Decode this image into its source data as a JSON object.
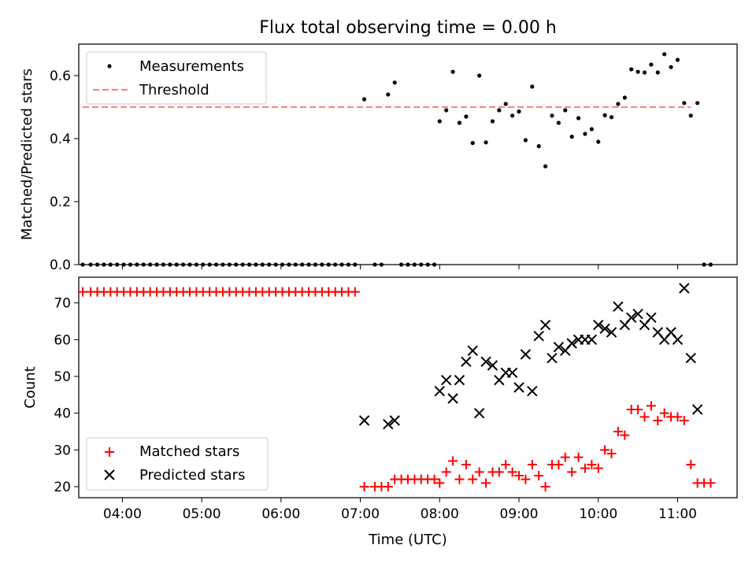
{
  "chart_data": [
    {
      "type": "scatter",
      "title": "Flux total observing time = 0.00 h",
      "xlabel": "",
      "ylabel": "Matched/Predicted stars",
      "xlim": [
        "03:27",
        "11:45"
      ],
      "ylim": [
        0,
        0.7
      ],
      "yticks": [
        0.0,
        0.2,
        0.4,
        0.6
      ],
      "ytick_labels": [
        "0.0",
        "0.2",
        "0.4",
        "0.6"
      ],
      "legend": {
        "position": "top-left",
        "entries": [
          "Measurements",
          "Threshold"
        ]
      },
      "series": [
        {
          "name": "Measurements",
          "marker": "dot",
          "color": "#000000",
          "x": [
            "03:30",
            "03:36",
            "03:41",
            "03:46",
            "03:51",
            "03:56",
            "04:01",
            "04:06",
            "04:11",
            "04:16",
            "04:21",
            "04:26",
            "04:31",
            "04:36",
            "04:41",
            "04:46",
            "04:51",
            "04:56",
            "05:01",
            "05:06",
            "05:11",
            "05:16",
            "05:21",
            "05:26",
            "05:31",
            "05:36",
            "05:41",
            "05:46",
            "05:51",
            "05:56",
            "06:01",
            "06:06",
            "06:11",
            "06:16",
            "06:21",
            "06:26",
            "06:31",
            "06:36",
            "06:41",
            "06:46",
            "06:51",
            "06:56",
            "07:03",
            "07:11",
            "07:16",
            "07:21",
            "07:26",
            "07:31",
            "07:36",
            "07:41",
            "07:46",
            "07:51",
            "07:56",
            "08:00",
            "08:05",
            "08:10",
            "08:15",
            "08:20",
            "08:25",
            "08:30",
            "08:35",
            "08:40",
            "08:45",
            "08:50",
            "08:55",
            "09:00",
            "09:05",
            "09:10",
            "09:15",
            "09:20",
            "09:25",
            "09:30",
            "09:35",
            "09:40",
            "09:45",
            "09:50",
            "09:55",
            "10:00",
            "10:05",
            "10:10",
            "10:15",
            "10:20",
            "10:25",
            "10:30",
            "10:35",
            "10:40",
            "10:45",
            "10:50",
            "10:55",
            "11:00",
            "11:05",
            "11:10",
            "11:15",
            "11:20",
            "11:25"
          ],
          "y": [
            0,
            0,
            0,
            0,
            0,
            0,
            0,
            0,
            0,
            0,
            0,
            0,
            0,
            0,
            0,
            0,
            0,
            0,
            0,
            0,
            0,
            0,
            0,
            0,
            0,
            0,
            0,
            0,
            0,
            0,
            0,
            0,
            0,
            0,
            0,
            0,
            0,
            0,
            0,
            0,
            0,
            0,
            0.525,
            0,
            0,
            0.54,
            0.578,
            0,
            0,
            0,
            0,
            0,
            0,
            0.455,
            0.49,
            0.612,
            0.45,
            0.47,
            0.386,
            0.6,
            0.388,
            0.455,
            0.49,
            0.51,
            0.473,
            0.486,
            0.395,
            0.565,
            0.376,
            0.312,
            0.473,
            0.45,
            0.49,
            0.406,
            0.465,
            0.415,
            0.43,
            0.39,
            0.474,
            0.468,
            0.51,
            0.53,
            0.62,
            0.612,
            0.61,
            0.635,
            0.61,
            0.668,
            0.627,
            0.65,
            0.513,
            0.473,
            0.513,
            0,
            0
          ]
        },
        {
          "name": "Threshold",
          "marker": "dashed-line",
          "color": "#ff7f7f",
          "x": [
            "03:30",
            "11:10"
          ],
          "y": [
            0.5,
            0.5
          ]
        }
      ]
    },
    {
      "type": "scatter",
      "title": "",
      "xlabel": "Time (UTC)",
      "ylabel": "Count",
      "xlim": [
        "03:27",
        "11:45"
      ],
      "ylim": [
        17,
        77
      ],
      "xticks": [
        "04:00",
        "05:00",
        "06:00",
        "07:00",
        "08:00",
        "09:00",
        "10:00",
        "11:00"
      ],
      "yticks": [
        20,
        30,
        40,
        50,
        60,
        70
      ],
      "ytick_labels": [
        "20",
        "30",
        "40",
        "50",
        "60",
        "70"
      ],
      "legend": {
        "position": "bottom-left",
        "entries": [
          "Matched stars",
          "Predicted stars"
        ]
      },
      "series": [
        {
          "name": "Matched stars",
          "marker": "plus",
          "color": "#ff0000",
          "x": [
            "03:30",
            "03:36",
            "03:41",
            "03:46",
            "03:51",
            "03:56",
            "04:01",
            "04:06",
            "04:11",
            "04:16",
            "04:21",
            "04:26",
            "04:31",
            "04:36",
            "04:41",
            "04:46",
            "04:51",
            "04:56",
            "05:01",
            "05:06",
            "05:11",
            "05:16",
            "05:21",
            "05:26",
            "05:31",
            "05:36",
            "05:41",
            "05:46",
            "05:51",
            "05:56",
            "06:01",
            "06:06",
            "06:11",
            "06:16",
            "06:21",
            "06:26",
            "06:31",
            "06:36",
            "06:41",
            "06:46",
            "06:51",
            "06:56",
            "07:03",
            "07:11",
            "07:16",
            "07:21",
            "07:26",
            "07:31",
            "07:36",
            "07:41",
            "07:46",
            "07:51",
            "07:56",
            "08:00",
            "08:05",
            "08:10",
            "08:15",
            "08:20",
            "08:25",
            "08:30",
            "08:35",
            "08:40",
            "08:45",
            "08:50",
            "08:55",
            "09:00",
            "09:05",
            "09:10",
            "09:15",
            "09:20",
            "09:25",
            "09:30",
            "09:35",
            "09:40",
            "09:45",
            "09:50",
            "09:55",
            "10:00",
            "10:05",
            "10:10",
            "10:15",
            "10:20",
            "10:25",
            "10:30",
            "10:35",
            "10:40",
            "10:45",
            "10:50",
            "10:55",
            "11:00",
            "11:05",
            "11:10",
            "11:15",
            "11:20",
            "11:25"
          ],
          "y": [
            73,
            73,
            73,
            73,
            73,
            73,
            73,
            73,
            73,
            73,
            73,
            73,
            73,
            73,
            73,
            73,
            73,
            73,
            73,
            73,
            73,
            73,
            73,
            73,
            73,
            73,
            73,
            73,
            73,
            73,
            73,
            73,
            73,
            73,
            73,
            73,
            73,
            73,
            73,
            73,
            73,
            73,
            20,
            20,
            20,
            20,
            22,
            22,
            22,
            22,
            22,
            22,
            22,
            21,
            24,
            27,
            22,
            26,
            22,
            24,
            21,
            24,
            24,
            26,
            24,
            23,
            22,
            26,
            23,
            20,
            26,
            26,
            28,
            24,
            28,
            25,
            26,
            25,
            30,
            29,
            35,
            34,
            41,
            41,
            39,
            42,
            38,
            40,
            39,
            39,
            38,
            26,
            21,
            21,
            21
          ]
        },
        {
          "name": "Predicted stars",
          "marker": "x",
          "color": "#000000",
          "x": [
            "07:03",
            "07:21",
            "07:26",
            "08:00",
            "08:05",
            "08:10",
            "08:15",
            "08:20",
            "08:25",
            "08:30",
            "08:35",
            "08:40",
            "08:45",
            "08:50",
            "08:55",
            "09:00",
            "09:05",
            "09:10",
            "09:15",
            "09:20",
            "09:25",
            "09:30",
            "09:35",
            "09:40",
            "09:45",
            "09:50",
            "09:55",
            "10:00",
            "10:05",
            "10:10",
            "10:15",
            "10:20",
            "10:25",
            "10:30",
            "10:35",
            "10:40",
            "10:45",
            "10:50",
            "10:55",
            "11:00",
            "11:05",
            "11:10",
            "11:15"
          ],
          "y": [
            38,
            37,
            38,
            46,
            49,
            44,
            49,
            54,
            57,
            40,
            54,
            53,
            49,
            51,
            51,
            47,
            56,
            46,
            61,
            64,
            55,
            58,
            57,
            59,
            60,
            60,
            60,
            64,
            63,
            62,
            69,
            64,
            66,
            67,
            64,
            66,
            62,
            60,
            62,
            60,
            74,
            55,
            41
          ]
        }
      ]
    }
  ]
}
